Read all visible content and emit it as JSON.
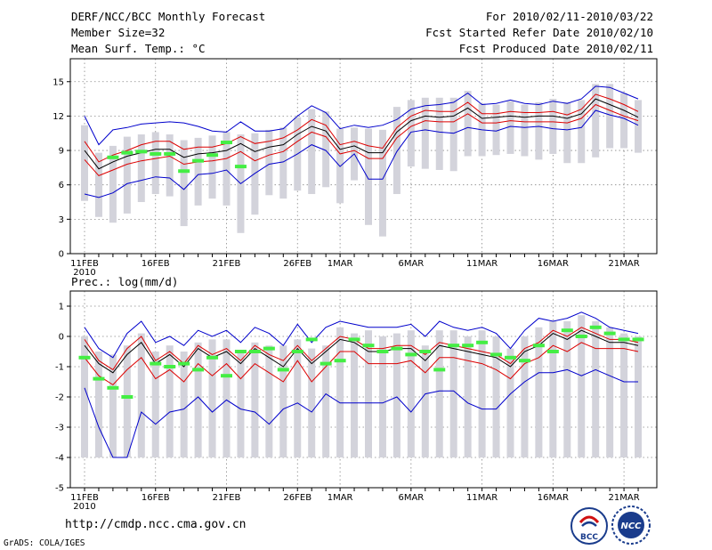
{
  "header": {
    "title": "DERF/NCC/BCC Monthly Forecast",
    "member_size": "Member Size=32",
    "panel1_var": "Mean Surf. Temp.: °C",
    "period": "For 2010/02/11-2010/03/22",
    "refer_date": "Fcst Started Refer Date 2010/02/10",
    "produced_date": "Fcst Produced Date 2010/02/11"
  },
  "panel2_title": "Prec.: log(mm/d)",
  "footer": {
    "url": "http://cmdp.ncc.cma.gov.cn",
    "credit": "GrADS: COLA/IGES",
    "logo1_text": "BCC",
    "logo2_text": "NCC"
  },
  "colors": {
    "max_min": "#0000cc",
    "spread": "#dd0000",
    "ensemble_mean": "#000000",
    "bar": "#d3d3db",
    "obs": "#44ee44"
  },
  "chart_data": [
    {
      "type": "line",
      "title": "Mean Surf. Temp.: °C",
      "ylim": [
        0,
        17
      ],
      "yticks": [
        0,
        3,
        6,
        9,
        12,
        15
      ],
      "x_tick_labels": [
        "11FEB",
        "16FEB",
        "21FEB",
        "26FEB",
        "1MAR",
        "6MAR",
        "11MAR",
        "16MAR",
        "21MAR"
      ],
      "x_tick_index": [
        0,
        5,
        10,
        15,
        18,
        23,
        28,
        33,
        38
      ],
      "x_year_label": "2010",
      "series": [
        {
          "name": "max",
          "values": [
            12.0,
            9.5,
            10.8,
            11.0,
            11.3,
            11.4,
            11.5,
            11.4,
            11.1,
            10.7,
            10.6,
            11.5,
            10.7,
            10.7,
            10.9,
            12.0,
            12.9,
            12.3,
            10.9,
            11.2,
            11.0,
            11.2,
            11.7,
            12.6,
            12.9,
            13.0,
            13.2,
            14.0,
            13.0,
            13.1,
            13.4,
            13.1,
            13.0,
            13.3,
            13.1,
            13.5,
            14.6,
            14.5,
            14.0,
            13.5
          ]
        },
        {
          "name": "upper",
          "values": [
            9.8,
            8.0,
            8.6,
            9.0,
            9.5,
            9.8,
            9.8,
            9.1,
            9.3,
            9.3,
            9.6,
            10.2,
            9.6,
            9.8,
            10.1,
            10.8,
            11.7,
            11.2,
            9.5,
            9.8,
            9.4,
            9.2,
            11.0,
            12.0,
            12.5,
            12.4,
            12.4,
            13.2,
            12.2,
            12.2,
            12.4,
            12.3,
            12.3,
            12.4,
            12.1,
            12.6,
            13.9,
            13.5,
            13.0,
            12.4
          ]
        },
        {
          "name": "mean",
          "values": [
            9.0,
            7.4,
            8.0,
            8.5,
            8.8,
            9.1,
            9.1,
            8.4,
            8.7,
            8.8,
            9.0,
            9.6,
            8.9,
            9.3,
            9.5,
            10.4,
            11.1,
            10.7,
            9.1,
            9.4,
            8.8,
            8.8,
            10.6,
            11.6,
            12.0,
            11.9,
            12.0,
            12.7,
            11.8,
            11.9,
            12.0,
            11.9,
            12.0,
            12.0,
            11.8,
            12.2,
            13.5,
            13.0,
            12.5,
            11.9
          ]
        },
        {
          "name": "lower",
          "values": [
            8.2,
            6.8,
            7.3,
            7.8,
            8.1,
            8.3,
            8.5,
            7.8,
            8.0,
            8.1,
            8.3,
            8.9,
            8.1,
            8.6,
            8.9,
            9.8,
            10.6,
            10.2,
            8.7,
            9.0,
            8.3,
            8.3,
            10.1,
            11.1,
            11.6,
            11.5,
            11.5,
            12.2,
            11.4,
            11.4,
            11.6,
            11.5,
            11.5,
            11.5,
            11.4,
            11.8,
            13.0,
            12.5,
            12.0,
            11.6
          ]
        },
        {
          "name": "min",
          "values": [
            5.2,
            4.9,
            5.3,
            6.1,
            6.4,
            6.7,
            6.6,
            5.6,
            6.9,
            7.0,
            7.3,
            6.1,
            7.0,
            7.8,
            8.0,
            8.7,
            9.5,
            9.0,
            7.6,
            8.7,
            6.5,
            6.5,
            8.9,
            10.6,
            10.8,
            10.6,
            10.5,
            11.0,
            10.8,
            10.7,
            11.1,
            11.0,
            11.1,
            10.9,
            10.8,
            11.0,
            12.5,
            12.1,
            11.8,
            11.2
          ]
        },
        {
          "name": "observed",
          "values": [
            null,
            null,
            8.4,
            8.8,
            8.9,
            8.7,
            8.7,
            7.2,
            8.1,
            8.6,
            9.7,
            7.6,
            null,
            null,
            null,
            null,
            null,
            null,
            null,
            null,
            null,
            null,
            null,
            null,
            null,
            null,
            null,
            null,
            null,
            null,
            null,
            null,
            null,
            null,
            null,
            null,
            null,
            null,
            null,
            null
          ]
        }
      ],
      "bars": [
        [
          4.6,
          11.2
        ],
        [
          3.2,
          8.8
        ],
        [
          2.7,
          9.4
        ],
        [
          3.5,
          10.2
        ],
        [
          4.5,
          10.4
        ],
        [
          5.2,
          10.6
        ],
        [
          5.0,
          10.4
        ],
        [
          2.4,
          9.9
        ],
        [
          4.2,
          10.1
        ],
        [
          4.8,
          10.3
        ],
        [
          4.2,
          10.6
        ],
        [
          1.8,
          10.4
        ],
        [
          3.4,
          10.5
        ],
        [
          5.1,
          10.8
        ],
        [
          4.8,
          11.0
        ],
        [
          5.5,
          11.9
        ],
        [
          5.2,
          12.6
        ],
        [
          5.8,
          12.4
        ],
        [
          4.4,
          10.9
        ],
        [
          6.4,
          11.0
        ],
        [
          2.5,
          10.9
        ],
        [
          1.5,
          10.8
        ],
        [
          5.2,
          12.8
        ],
        [
          7.6,
          13.4
        ],
        [
          7.4,
          13.6
        ],
        [
          7.3,
          13.6
        ],
        [
          7.2,
          13.6
        ],
        [
          8.5,
          14.2
        ],
        [
          8.5,
          13.1
        ],
        [
          8.6,
          13.0
        ],
        [
          8.7,
          13.3
        ],
        [
          8.5,
          13.0
        ],
        [
          8.2,
          13.2
        ],
        [
          8.7,
          13.5
        ],
        [
          7.9,
          13.2
        ],
        [
          7.9,
          13.4
        ],
        [
          8.4,
          14.8
        ],
        [
          9.2,
          14.8
        ],
        [
          9.2,
          14.0
        ],
        [
          8.8,
          13.4
        ]
      ]
    },
    {
      "type": "line",
      "title": "Prec.: log(mm/d)",
      "ylim": [
        -5,
        1.5
      ],
      "yticks": [
        -5,
        -4,
        -3,
        -2,
        -1,
        0,
        1
      ],
      "x_tick_labels": [
        "11FEB",
        "16FEB",
        "21FEB",
        "26FEB",
        "1MAR",
        "6MAR",
        "11MAR",
        "16MAR",
        "21MAR"
      ],
      "x_tick_index": [
        0,
        5,
        10,
        15,
        18,
        23,
        28,
        33,
        38
      ],
      "x_year_label": "2010",
      "series": [
        {
          "name": "max",
          "values": [
            0.3,
            -0.4,
            -0.7,
            0.1,
            0.5,
            -0.2,
            0.0,
            -0.3,
            0.2,
            0.0,
            0.2,
            -0.2,
            0.3,
            0.1,
            -0.3,
            0.4,
            -0.2,
            0.3,
            0.5,
            0.4,
            0.3,
            0.3,
            0.3,
            0.4,
            0.0,
            0.5,
            0.3,
            0.2,
            0.3,
            0.1,
            -0.4,
            0.2,
            0.6,
            0.5,
            0.6,
            0.8,
            0.6,
            0.3,
            0.2,
            0.1
          ]
        },
        {
          "name": "upper",
          "values": [
            -0.1,
            -0.8,
            -1.1,
            -0.4,
            0.0,
            -0.8,
            -0.5,
            -0.9,
            -0.3,
            -0.6,
            -0.4,
            -0.8,
            -0.3,
            -0.6,
            -0.8,
            -0.3,
            -0.8,
            -0.4,
            0.0,
            -0.1,
            -0.4,
            -0.4,
            -0.3,
            -0.3,
            -0.6,
            -0.2,
            -0.3,
            -0.4,
            -0.5,
            -0.6,
            -0.9,
            -0.4,
            -0.2,
            0.2,
            0.0,
            0.3,
            0.1,
            -0.1,
            -0.1,
            -0.2
          ]
        },
        {
          "name": "mean",
          "values": [
            -0.3,
            -0.9,
            -1.2,
            -0.6,
            -0.2,
            -0.9,
            -0.6,
            -1.0,
            -0.4,
            -0.7,
            -0.5,
            -0.9,
            -0.4,
            -0.7,
            -1.0,
            -0.4,
            -0.9,
            -0.5,
            -0.1,
            -0.2,
            -0.5,
            -0.5,
            -0.4,
            -0.4,
            -0.8,
            -0.3,
            -0.4,
            -0.5,
            -0.6,
            -0.7,
            -1.0,
            -0.5,
            -0.3,
            0.1,
            -0.1,
            0.2,
            0.0,
            -0.2,
            -0.2,
            -0.3
          ]
        },
        {
          "name": "lower",
          "values": [
            -0.7,
            -1.3,
            -1.6,
            -1.1,
            -0.7,
            -1.4,
            -1.1,
            -1.5,
            -0.9,
            -1.3,
            -0.9,
            -1.4,
            -0.9,
            -1.2,
            -1.5,
            -0.8,
            -1.5,
            -1.0,
            -0.5,
            -0.5,
            -0.9,
            -0.9,
            -0.9,
            -0.8,
            -1.2,
            -0.7,
            -0.7,
            -0.8,
            -0.9,
            -1.1,
            -1.4,
            -0.9,
            -0.7,
            -0.3,
            -0.5,
            -0.2,
            -0.4,
            -0.4,
            -0.4,
            -0.5
          ]
        },
        {
          "name": "min",
          "values": [
            -1.7,
            -3.0,
            -4.0,
            -4.0,
            -2.5,
            -2.9,
            -2.5,
            -2.4,
            -2.0,
            -2.5,
            -2.1,
            -2.4,
            -2.5,
            -2.9,
            -2.4,
            -2.2,
            -2.5,
            -1.9,
            -2.2,
            -2.2,
            -2.2,
            -2.2,
            -2.0,
            -2.5,
            -1.9,
            -1.8,
            -1.8,
            -2.2,
            -2.4,
            -2.4,
            -1.9,
            -1.5,
            -1.2,
            -1.2,
            -1.1,
            -1.3,
            -1.1,
            -1.3,
            -1.5,
            -1.5
          ]
        },
        {
          "name": "observed",
          "values": [
            -0.7,
            -1.4,
            -1.7,
            -2.0,
            null,
            -0.9,
            -1.0,
            -0.9,
            -1.1,
            -0.7,
            -1.3,
            -0.5,
            -0.5,
            -0.4,
            -1.1,
            -0.5,
            -0.1,
            -0.9,
            -0.8,
            -0.1,
            -0.3,
            -0.5,
            -0.4,
            -0.6,
            -0.5,
            -1.1,
            -0.3,
            -0.3,
            -0.2,
            -0.6,
            -0.7,
            -0.8,
            -0.3,
            -0.5,
            0.2,
            0.0,
            0.3,
            0.1,
            -0.1,
            -0.1
          ]
        }
      ],
      "bars": [
        [
          -4.0,
          0.0
        ],
        [
          -4.0,
          -0.5
        ],
        [
          -4.0,
          -0.6
        ],
        [
          -4.0,
          -0.3
        ],
        [
          -4.0,
          0.1
        ],
        [
          -4.0,
          -0.5
        ],
        [
          -4.0,
          -0.3
        ],
        [
          -4.0,
          -0.5
        ],
        [
          -4.0,
          -0.2
        ],
        [
          -4.0,
          -0.1
        ],
        [
          -4.0,
          -0.1
        ],
        [
          -4.0,
          -0.5
        ],
        [
          -4.0,
          -0.2
        ],
        [
          -4.0,
          -0.3
        ],
        [
          -4.0,
          -0.3
        ],
        [
          -4.0,
          -0.1
        ],
        [
          -4.0,
          -0.4
        ],
        [
          -4.0,
          -0.3
        ],
        [
          -4.0,
          0.3
        ],
        [
          -4.0,
          0.1
        ],
        [
          -4.0,
          0.2
        ],
        [
          -4.0,
          0.0
        ],
        [
          -4.0,
          0.1
        ],
        [
          -4.0,
          0.2
        ],
        [
          -4.0,
          -0.3
        ],
        [
          -4.0,
          0.2
        ],
        [
          -4.0,
          0.2
        ],
        [
          -4.0,
          0.0
        ],
        [
          -4.0,
          0.2
        ],
        [
          -4.0,
          0.0
        ],
        [
          -4.0,
          -0.4
        ],
        [
          -4.0,
          0.0
        ],
        [
          -4.0,
          0.3
        ],
        [
          -4.0,
          0.5
        ],
        [
          -4.0,
          0.5
        ],
        [
          -4.0,
          0.7
        ],
        [
          -4.0,
          0.5
        ],
        [
          -4.0,
          0.3
        ],
        [
          -4.0,
          0.1
        ],
        [
          -4.0,
          0.0
        ]
      ]
    }
  ]
}
